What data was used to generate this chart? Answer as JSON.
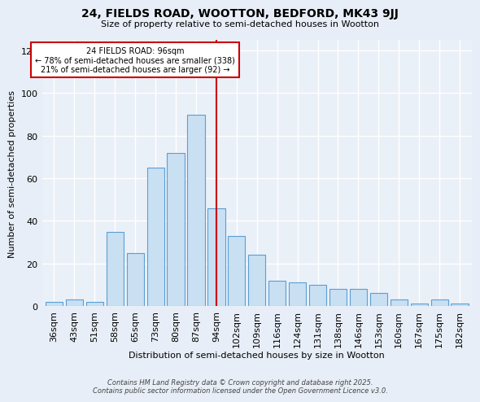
{
  "title": "24, FIELDS ROAD, WOOTTON, BEDFORD, MK43 9JJ",
  "subtitle": "Size of property relative to semi-detached houses in Wootton",
  "xlabel": "Distribution of semi-detached houses by size in Wootton",
  "ylabel": "Number of semi-detached properties",
  "bar_labels": [
    "36sqm",
    "43sqm",
    "51sqm",
    "58sqm",
    "65sqm",
    "73sqm",
    "80sqm",
    "87sqm",
    "94sqm",
    "102sqm",
    "109sqm",
    "116sqm",
    "124sqm",
    "131sqm",
    "138sqm",
    "146sqm",
    "153sqm",
    "160sqm",
    "167sqm",
    "175sqm",
    "182sqm"
  ],
  "bar_heights": [
    2,
    3,
    2,
    35,
    25,
    65,
    72,
    90,
    46,
    33,
    24,
    12,
    11,
    10,
    8,
    8,
    6,
    3,
    1,
    3,
    1
  ],
  "bar_color": "#c9dff2",
  "bar_edge_color": "#5a9fd4",
  "vline_index": 8,
  "reference_label": "24 FIELDS ROAD: 96sqm",
  "annotation_line1": "← 78% of semi-detached houses are smaller (338)",
  "annotation_line2": "21% of semi-detached houses are larger (92) →",
  "vline_color": "#cc0000",
  "ylim": [
    0,
    125
  ],
  "yticks": [
    0,
    20,
    40,
    60,
    80,
    100,
    120
  ],
  "bg_color": "#e8eef7",
  "plot_bg_color": "#eaf0f8",
  "footer_line1": "Contains HM Land Registry data © Crown copyright and database right 2025.",
  "footer_line2": "Contains public sector information licensed under the Open Government Licence v3.0."
}
